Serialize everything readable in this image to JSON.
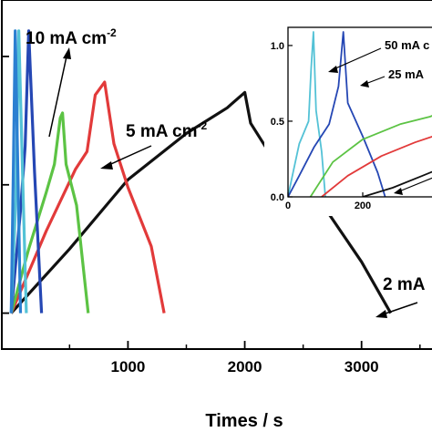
{
  "chart_data": [
    {
      "type": "line",
      "xlabel": "Times / s",
      "ylabel": "",
      "xlim": [
        -80,
        3650
      ],
      "ylim": [
        -0.14,
        1.22
      ],
      "x_ticks": [
        1000,
        2000,
        3000
      ],
      "x_tick_labels": [
        "1000",
        "2000",
        "3000"
      ],
      "grid": false,
      "annotations": [
        {
          "text": "10 mA cm",
          "sup": "-2"
        },
        {
          "text": "5 mA cm",
          "sup": "-2"
        },
        {
          "text": "2 mA"
        }
      ],
      "series": [
        {
          "color": "#111111",
          "points": [
            [
              0,
              0
            ],
            [
              500,
              0.25
            ],
            [
              1000,
              0.52
            ],
            [
              1500,
              0.7
            ],
            [
              1850,
              0.8
            ],
            [
              2000,
              0.86
            ],
            [
              2050,
              0.74
            ],
            [
              2300,
              0.56
            ],
            [
              2700,
              0.4
            ],
            [
              3000,
              0.2
            ],
            [
              3250,
              0
            ]
          ]
        },
        {
          "color": "#e23a3a",
          "points": [
            [
              0,
              0
            ],
            [
              300,
              0.32
            ],
            [
              550,
              0.56
            ],
            [
              650,
              0.63
            ],
            [
              720,
              0.85
            ],
            [
              800,
              0.9
            ],
            [
              880,
              0.66
            ],
            [
              1000,
              0.49
            ],
            [
              1200,
              0.26
            ],
            [
              1310,
              0
            ]
          ]
        },
        {
          "color": "#5cc344",
          "points": [
            [
              0,
              0
            ],
            [
              150,
              0.25
            ],
            [
              300,
              0.47
            ],
            [
              370,
              0.58
            ],
            [
              420,
              0.76
            ],
            [
              440,
              0.78
            ],
            [
              470,
              0.58
            ],
            [
              560,
              0.42
            ],
            [
              660,
              0
            ]
          ]
        },
        {
          "color": "#2547b4",
          "points": [
            [
              0,
              0
            ],
            [
              80,
              0.4
            ],
            [
              120,
              0.65
            ],
            [
              150,
              1.1
            ],
            [
              200,
              0.55
            ],
            [
              260,
              0
            ]
          ]
        },
        {
          "color": "#54c2d6",
          "points": [
            [
              0,
              0
            ],
            [
              40,
              0.45
            ],
            [
              65,
              1.1
            ],
            [
              100,
              0.5
            ],
            [
              130,
              0
            ]
          ]
        },
        {
          "color": "#2b7fd1",
          "points": [
            [
              0,
              0
            ],
            [
              20,
              0.6
            ],
            [
              35,
              1.1
            ],
            [
              60,
              0.5
            ],
            [
              80,
              0
            ]
          ]
        }
      ]
    },
    {
      "type": "line",
      "inset": true,
      "xlim": [
        0,
        400
      ],
      "ylim": [
        0,
        1.12
      ],
      "x_ticks": [
        0,
        200
      ],
      "x_tick_labels": [
        "0",
        "200"
      ],
      "y_ticks": [
        0.0,
        0.5,
        1.0
      ],
      "y_tick_labels": [
        "0.0",
        "0.5",
        "1.0"
      ],
      "annotations": [
        {
          "text": "50 mA c"
        },
        {
          "text": "25 mA"
        }
      ],
      "series": [
        {
          "color": "#54c2d6",
          "points": [
            [
              0,
              0
            ],
            [
              10,
              0.12
            ],
            [
              30,
              0.35
            ],
            [
              55,
              0.5
            ],
            [
              62,
              0.85
            ],
            [
              68,
              1.09
            ],
            [
              75,
              0.57
            ],
            [
              90,
              0.3
            ],
            [
              100,
              0
            ]
          ]
        },
        {
          "color": "#2547b4",
          "points": [
            [
              0,
              0
            ],
            [
              30,
              0.14
            ],
            [
              70,
              0.33
            ],
            [
              110,
              0.48
            ],
            [
              135,
              0.73
            ],
            [
              148,
              1.09
            ],
            [
              160,
              0.62
            ],
            [
              200,
              0.4
            ],
            [
              240,
              0.16
            ],
            [
              260,
              0
            ]
          ]
        },
        {
          "color": "#5cc344",
          "points": [
            [
              60,
              0
            ],
            [
              120,
              0.23
            ],
            [
              200,
              0.38
            ],
            [
              300,
              0.48
            ],
            [
              380,
              0.53
            ],
            [
              400,
              0.55
            ]
          ]
        },
        {
          "color": "#e23a3a",
          "points": [
            [
              90,
              0
            ],
            [
              160,
              0.14
            ],
            [
              250,
              0.27
            ],
            [
              340,
              0.36
            ],
            [
              400,
              0.41
            ]
          ]
        },
        {
          "color": "#111111",
          "points": [
            [
              200,
              0
            ],
            [
              280,
              0.06
            ],
            [
              360,
              0.14
            ],
            [
              400,
              0.18
            ]
          ]
        }
      ]
    }
  ]
}
